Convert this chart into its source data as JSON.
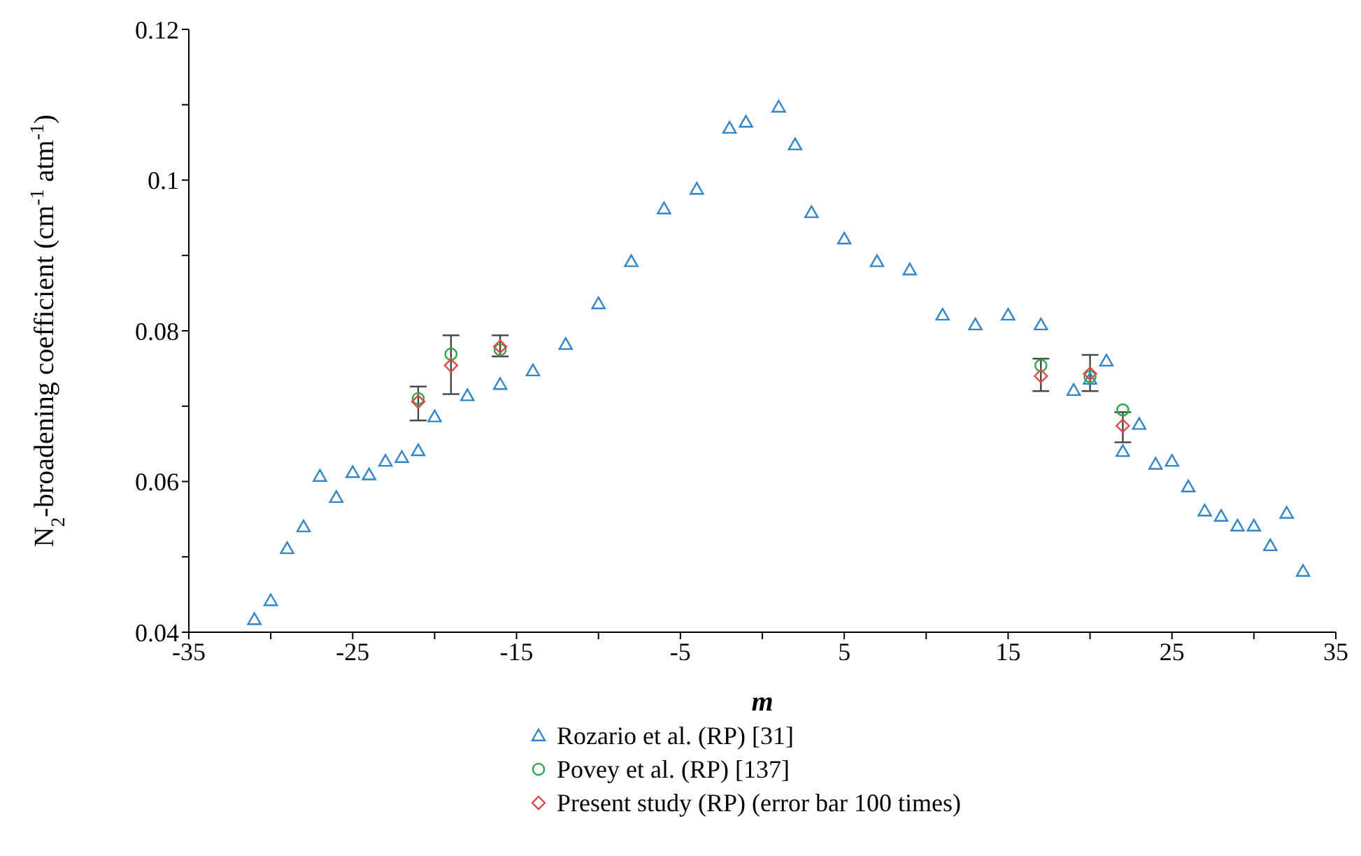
{
  "chart_data": {
    "type": "scatter",
    "xlabel": "m",
    "ylabel": "N$_{2}$-broadening coefficient (cm$^{-1}$ atm$^{-1}$)",
    "xlim": [
      -35,
      35
    ],
    "xticks": [
      -35,
      {
        "value": -30,
        "label": null
      },
      -25,
      {
        "value": -20,
        "label": null
      },
      -15,
      {
        "value": -10,
        "label": null
      },
      -5,
      {
        "value": 0,
        "label": null
      },
      5,
      {
        "value": 10,
        "label": null
      },
      15,
      {
        "value": 20,
        "label": null
      },
      25,
      {
        "value": 30,
        "label": null
      },
      35
    ],
    "ylim": [
      0.04,
      0.12
    ],
    "yticks": [
      0.04,
      {
        "value": 0.05,
        "label": null
      },
      0.06,
      {
        "value": 0.07,
        "label": null
      },
      0.08,
      {
        "value": 0.09,
        "label": null
      },
      {
        "value": 0.1,
        "label": "0.1"
      },
      {
        "value": 0.11,
        "label": null
      },
      0.12
    ],
    "grid": false,
    "legend": "bottom",
    "series": [
      {
        "name": "Rozario et al. (RP) [31]",
        "color": "#2f86c8",
        "marker": "triangle",
        "x": [
          -31,
          -30,
          -29,
          -28,
          -27,
          -26,
          -25,
          -24,
          -23,
          -22,
          -21,
          -20,
          -18,
          -16,
          -14,
          -12,
          -10,
          -8,
          -6,
          -4,
          -2,
          -1,
          1,
          2,
          3,
          5,
          7,
          9,
          11,
          13,
          15,
          17,
          19,
          20,
          21,
          22,
          23,
          24,
          25,
          26,
          27,
          28,
          29,
          30,
          31,
          32,
          33
        ],
        "values": [
          0.0417,
          0.0442,
          0.0511,
          0.054,
          0.0607,
          0.0579,
          0.0612,
          0.0609,
          0.0627,
          0.0632,
          0.0641,
          0.0686,
          0.0714,
          0.0729,
          0.0747,
          0.0782,
          0.0836,
          0.0892,
          0.0962,
          0.0988,
          0.1069,
          0.1077,
          0.1097,
          0.1047,
          0.0957,
          0.0922,
          0.0892,
          0.0881,
          0.0821,
          0.0808,
          0.0821,
          0.0808,
          0.0721,
          0.0736,
          0.076,
          0.064,
          0.0676,
          0.0623,
          0.0627,
          0.0593,
          0.0561,
          0.0554,
          0.0541,
          0.0541,
          0.0515,
          0.0558,
          0.0481
        ]
      },
      {
        "name": "Povey et al. (RP) [137]",
        "color": "#2aa84a",
        "marker": "circle",
        "x": [
          -21,
          -19,
          -16,
          17,
          20,
          22
        ],
        "values": [
          0.071,
          0.0769,
          0.0775,
          0.0754,
          0.0739,
          0.0695
        ]
      },
      {
        "name": "Present study (RP) (error bar 100 times)",
        "color": "#e8474a",
        "marker": "diamond",
        "x": [
          -21,
          -19,
          -16,
          17,
          20,
          22
        ],
        "values": [
          0.0706,
          0.0754,
          0.0779,
          0.074,
          0.0743,
          0.0674
        ],
        "errors": [
          [
            0.0681,
            0.0726
          ],
          [
            0.0716,
            0.0794
          ],
          [
            0.0766,
            0.0794
          ],
          [
            0.072,
            0.0763
          ],
          [
            0.072,
            0.0768
          ],
          [
            0.0652,
            0.0692
          ]
        ]
      }
    ]
  }
}
